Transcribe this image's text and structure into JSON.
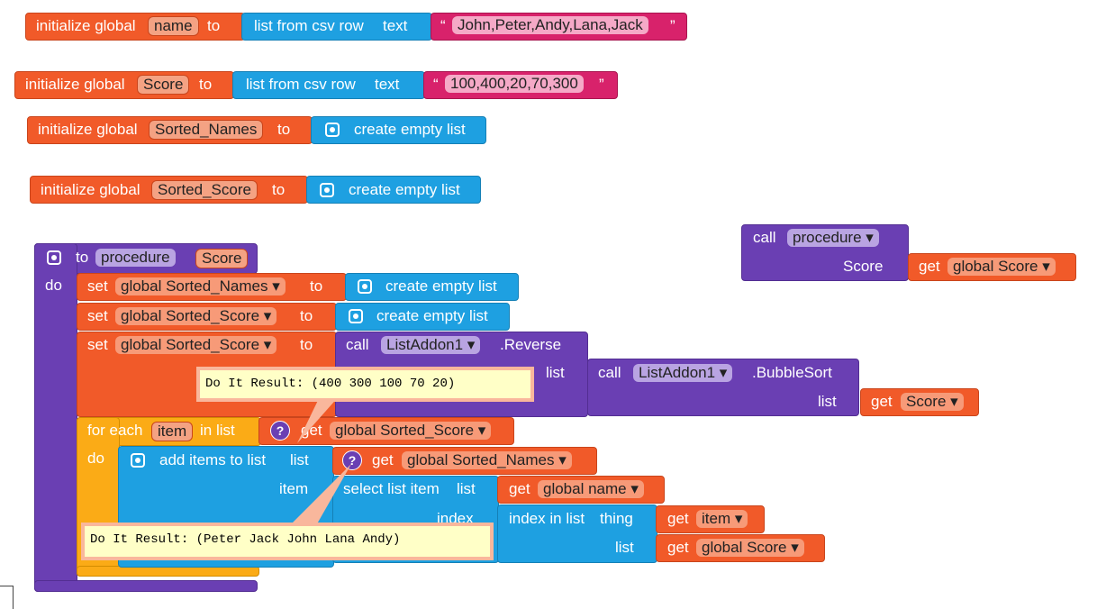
{
  "globals": [
    {
      "init": "initialize global",
      "name": "name",
      "to": "to",
      "call": "list from csv row",
      "param": "text",
      "open": "“",
      "value": "John,Peter,Andy,Lana,Jack",
      "close": "”"
    },
    {
      "init": "initialize global",
      "name": "Score",
      "to": "to",
      "call": "list from csv row",
      "param": "text",
      "open": "“",
      "value": "100,400,20,70,300",
      "close": "”"
    },
    {
      "init": "initialize global",
      "name": "Sorted_Names",
      "to": "to",
      "call": "create empty list"
    },
    {
      "init": "initialize global",
      "name": "Sorted_Score",
      "to": "to",
      "call": "create empty list"
    }
  ],
  "procedure": {
    "to": "to",
    "name": "procedure",
    "param": "Score",
    "do": "do",
    "sets": [
      {
        "set": "set",
        "var": "global Sorted_Names ▾",
        "to": "to",
        "value": "create empty list"
      },
      {
        "set": "set",
        "var": "global Sorted_Score ▾",
        "to": "to",
        "value": "create empty list"
      },
      {
        "set": "set",
        "var": "global Sorted_Score ▾",
        "to": "to",
        "call": "call",
        "component": "ListAddon1 ▾",
        "method": ".Reverse",
        "arg": "list",
        "inner": {
          "call": "call",
          "component": "ListAddon1 ▾",
          "method": ".BubbleSort",
          "arg": "list",
          "get": "get",
          "var": "Score ▾"
        }
      }
    ],
    "comment1": "Do It Result: (400 300 100 70 20)",
    "for_each": {
      "for": "for each",
      "var": "item",
      "in": "in list",
      "help": "?",
      "get": "get",
      "list": "global Sorted_Score ▾",
      "do": "do",
      "add": {
        "label": "add items to list",
        "list": "list",
        "item": "item",
        "help": "?",
        "get": "get",
        "list_var": "global Sorted_Names ▾",
        "select": {
          "label": "select list item",
          "list": "list",
          "index": "index",
          "get": "get",
          "list_var": "global name ▾",
          "index_in": {
            "label": "index in list",
            "thing": "thing",
            "list": "list",
            "get1": "get",
            "thing_var": "item ▾",
            "get2": "get",
            "list_var": "global Score ▾"
          }
        }
      }
    },
    "comment2": "Do It Result: (Peter Jack John Lana Andy)"
  },
  "call": {
    "call": "call",
    "name": "procedure ▾",
    "param": "Score",
    "get": "get",
    "var": "global Score ▾"
  }
}
